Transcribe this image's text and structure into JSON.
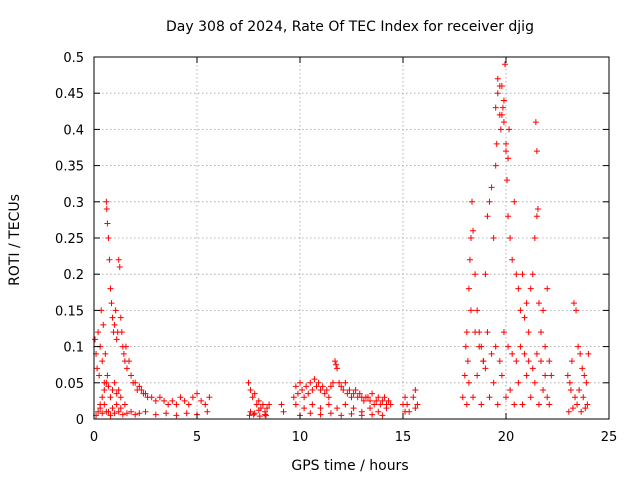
{
  "chart_data": {
    "type": "scatter",
    "title": "Day 308 of 2024, Rate Of TEC Index for receiver djig",
    "xlabel": "GPS time / hours",
    "ylabel": "ROTI / TECUs",
    "xlim": [
      0,
      25
    ],
    "ylim": [
      0,
      0.5
    ],
    "xticks": [
      0,
      5,
      10,
      15,
      20,
      25
    ],
    "xtick_labels": [
      "0",
      "5",
      "10",
      "15",
      "20",
      "25"
    ],
    "yticks": [
      0,
      0.05,
      0.1,
      0.15,
      0.2,
      0.25,
      0.3,
      0.35,
      0.4,
      0.45,
      0.5
    ],
    "ytick_labels": [
      "0",
      "0.05",
      "0.1",
      "0.15",
      "0.2",
      "0.25",
      "0.3",
      "0.35",
      "0.4",
      "0.45",
      "0.5"
    ],
    "grid": true,
    "marker": "+",
    "color": "#ff0000",
    "series": [
      {
        "x": [
          0.05,
          0.1,
          0.15,
          0.2,
          0.25,
          0.3,
          0.35,
          0.4,
          0.45,
          0.5,
          0.55,
          0.6,
          0.62,
          0.65,
          0.7,
          0.75,
          0.8,
          0.85,
          0.9,
          0.95,
          1.0,
          1.05,
          1.1,
          1.15,
          1.2,
          1.25,
          1.3,
          1.35,
          1.4,
          1.45,
          1.5,
          1.55,
          1.6,
          1.7,
          1.8,
          1.9,
          2.0,
          2.1,
          2.2,
          2.3,
          2.4,
          2.5,
          2.6,
          2.8,
          3.0,
          3.2,
          3.4,
          3.6,
          3.8,
          4.0,
          4.2,
          4.4,
          4.6,
          4.8,
          5.0,
          5.2,
          5.4,
          5.6,
          0.3,
          0.4,
          0.5,
          0.6,
          0.65,
          0.7,
          0.8,
          0.9,
          1.0,
          1.1,
          1.2,
          1.3,
          0.2,
          0.3,
          0.5,
          0.7,
          0.9,
          1.1,
          1.3,
          1.5,
          0.1,
          0.4,
          0.6,
          0.8,
          1.0,
          1.2,
          1.4,
          1.6,
          1.8,
          2.0,
          2.2,
          2.5,
          3.0,
          3.5,
          4.0,
          4.5,
          5.0,
          5.5
        ],
        "y": [
          0.11,
          0.09,
          0.07,
          0.12,
          0.06,
          0.1,
          0.15,
          0.08,
          0.13,
          0.05,
          0.09,
          0.3,
          0.29,
          0.27,
          0.25,
          0.22,
          0.18,
          0.16,
          0.14,
          0.12,
          0.13,
          0.15,
          0.11,
          0.12,
          0.22,
          0.21,
          0.14,
          0.12,
          0.1,
          0.09,
          0.08,
          0.1,
          0.07,
          0.08,
          0.06,
          0.05,
          0.05,
          0.04,
          0.045,
          0.04,
          0.035,
          0.035,
          0.03,
          0.03,
          0.025,
          0.03,
          0.025,
          0.02,
          0.025,
          0.02,
          0.03,
          0.025,
          0.02,
          0.03,
          0.035,
          0.025,
          0.02,
          0.03,
          0.02,
          0.03,
          0.04,
          0.05,
          0.06,
          0.045,
          0.03,
          0.04,
          0.05,
          0.035,
          0.04,
          0.03,
          0.01,
          0.015,
          0.02,
          0.01,
          0.015,
          0.02,
          0.015,
          0.02,
          0.005,
          0.008,
          0.01,
          0.005,
          0.008,
          0.01,
          0.006,
          0.008,
          0.01,
          0.006,
          0.008,
          0.01,
          0.006,
          0.008,
          0.005,
          0.008,
          0.006,
          0.01
        ]
      },
      {
        "x": [
          7.5,
          7.6,
          7.7,
          7.8,
          7.9,
          8.0,
          8.1,
          8.2,
          8.3,
          8.4,
          8.5,
          7.6,
          7.8,
          8.0,
          8.3,
          9.1,
          9.2,
          7.55,
          7.75,
          8.05,
          8.35
        ],
        "y": [
          0.05,
          0.04,
          0.03,
          0.035,
          0.02,
          0.025,
          0.015,
          0.02,
          0.01,
          0.015,
          0.02,
          0.01,
          0.008,
          0.012,
          0.006,
          0.02,
          0.01,
          0.005,
          0.006,
          0.004,
          0.005
        ]
      },
      {
        "x": [
          9.7,
          9.8,
          9.9,
          10.0,
          10.1,
          10.2,
          10.3,
          10.4,
          10.5,
          10.6,
          10.7,
          10.8,
          10.9,
          11.0,
          11.1,
          11.2,
          11.3,
          11.4,
          11.5,
          11.6,
          11.7,
          11.75,
          11.8,
          11.9,
          12.0,
          12.1,
          12.2,
          12.3,
          12.4,
          12.5,
          12.6,
          12.7,
          12.8,
          12.9,
          13.0,
          13.1,
          13.2,
          13.3,
          13.4,
          13.5,
          13.6,
          13.7,
          13.8,
          13.9,
          14.0,
          14.1,
          14.2,
          14.3,
          14.4,
          9.8,
          10.2,
          10.6,
          11.0,
          11.4,
          11.8,
          12.2,
          12.6,
          13.0,
          13.4,
          13.8,
          14.2,
          10.0,
          10.5,
          11.0,
          11.5,
          12.0,
          12.5,
          13.0,
          13.5,
          14.0
        ],
        "y": [
          0.03,
          0.045,
          0.035,
          0.05,
          0.04,
          0.03,
          0.045,
          0.035,
          0.05,
          0.04,
          0.055,
          0.045,
          0.05,
          0.04,
          0.045,
          0.035,
          0.04,
          0.03,
          0.045,
          0.05,
          0.08,
          0.075,
          0.07,
          0.05,
          0.045,
          0.04,
          0.05,
          0.035,
          0.04,
          0.03,
          0.035,
          0.04,
          0.03,
          0.035,
          0.03,
          0.025,
          0.03,
          0.03,
          0.025,
          0.035,
          0.02,
          0.025,
          0.03,
          0.02,
          0.025,
          0.03,
          0.02,
          0.025,
          0.02,
          0.02,
          0.015,
          0.02,
          0.015,
          0.02,
          0.015,
          0.02,
          0.015,
          0.01,
          0.015,
          0.01,
          0.015,
          0.005,
          0.008,
          0.006,
          0.008,
          0.005,
          0.007,
          0.005,
          0.006,
          0.005
        ]
      },
      {
        "x": [
          15.0,
          15.1,
          15.2,
          15.3,
          15.5,
          15.6,
          15.7,
          15.1,
          15.6
        ],
        "y": [
          0.02,
          0.03,
          0.02,
          0.01,
          0.03,
          0.04,
          0.02,
          0.01,
          0.015
        ]
      },
      {
        "x": [
          17.9,
          18.0,
          18.05,
          18.1,
          18.15,
          18.2,
          18.25,
          18.3,
          18.35,
          18.4,
          18.5,
          18.6,
          18.7,
          18.8,
          18.9,
          19.0,
          19.1,
          19.2,
          19.3,
          19.4,
          19.5,
          19.55,
          19.6,
          19.7,
          19.75,
          19.8,
          19.85,
          19.9,
          19.95,
          20.0,
          20.05,
          20.1,
          20.2,
          20.3,
          20.4,
          20.5,
          20.6,
          20.7,
          20.8,
          20.9,
          21.0,
          21.1,
          21.2,
          21.3,
          21.4,
          21.5,
          21.6,
          21.7,
          21.8,
          21.9,
          22.0,
          22.1,
          22.2,
          18.3,
          18.5,
          18.7,
          18.9,
          19.1,
          19.3,
          19.5,
          19.7,
          19.9,
          20.1,
          20.3,
          20.5,
          20.7,
          20.9,
          21.1,
          21.3,
          21.5,
          21.7,
          21.9,
          18.2,
          18.6,
          19.0,
          19.4,
          19.8,
          20.2,
          20.6,
          21.0,
          21.4,
          21.8,
          22.0,
          18.1,
          18.4,
          18.8,
          19.2,
          19.6,
          20.0,
          20.4,
          20.8,
          21.2,
          21.6,
          22.1,
          19.5,
          19.6,
          19.7,
          19.8,
          19.9,
          20.0,
          21.45,
          21.5,
          21.55,
          20.1,
          20.15
        ],
        "y": [
          0.03,
          0.06,
          0.1,
          0.12,
          0.08,
          0.18,
          0.22,
          0.25,
          0.3,
          0.26,
          0.2,
          0.15,
          0.12,
          0.1,
          0.08,
          0.2,
          0.28,
          0.3,
          0.32,
          0.25,
          0.35,
          0.38,
          0.45,
          0.42,
          0.4,
          0.46,
          0.43,
          0.41,
          0.49,
          0.38,
          0.33,
          0.28,
          0.25,
          0.22,
          0.3,
          0.2,
          0.18,
          0.15,
          0.2,
          0.14,
          0.16,
          0.12,
          0.18,
          0.2,
          0.25,
          0.28,
          0.16,
          0.12,
          0.15,
          0.1,
          0.18,
          0.08,
          0.06,
          0.15,
          0.12,
          0.1,
          0.08,
          0.12,
          0.09,
          0.1,
          0.08,
          0.12,
          0.1,
          0.09,
          0.08,
          0.1,
          0.09,
          0.08,
          0.07,
          0.09,
          0.08,
          0.06,
          0.05,
          0.06,
          0.07,
          0.05,
          0.06,
          0.04,
          0.05,
          0.06,
          0.05,
          0.04,
          0.03,
          0.02,
          0.03,
          0.02,
          0.03,
          0.02,
          0.03,
          0.02,
          0.02,
          0.03,
          0.02,
          0.02,
          0.43,
          0.47,
          0.46,
          0.42,
          0.44,
          0.37,
          0.41,
          0.37,
          0.29,
          0.36,
          0.4
        ]
      },
      {
        "x": [
          23.0,
          23.1,
          23.2,
          23.3,
          23.4,
          23.5,
          23.6,
          23.7,
          23.8,
          23.9,
          24.0,
          23.15,
          23.35,
          23.55,
          23.75,
          23.95,
          23.05,
          23.25,
          23.45,
          23.65,
          23.85
        ],
        "y": [
          0.06,
          0.05,
          0.08,
          0.16,
          0.15,
          0.1,
          0.09,
          0.07,
          0.06,
          0.05,
          0.09,
          0.04,
          0.03,
          0.04,
          0.03,
          0.02,
          0.01,
          0.015,
          0.02,
          0.01,
          0.015
        ]
      }
    ]
  }
}
